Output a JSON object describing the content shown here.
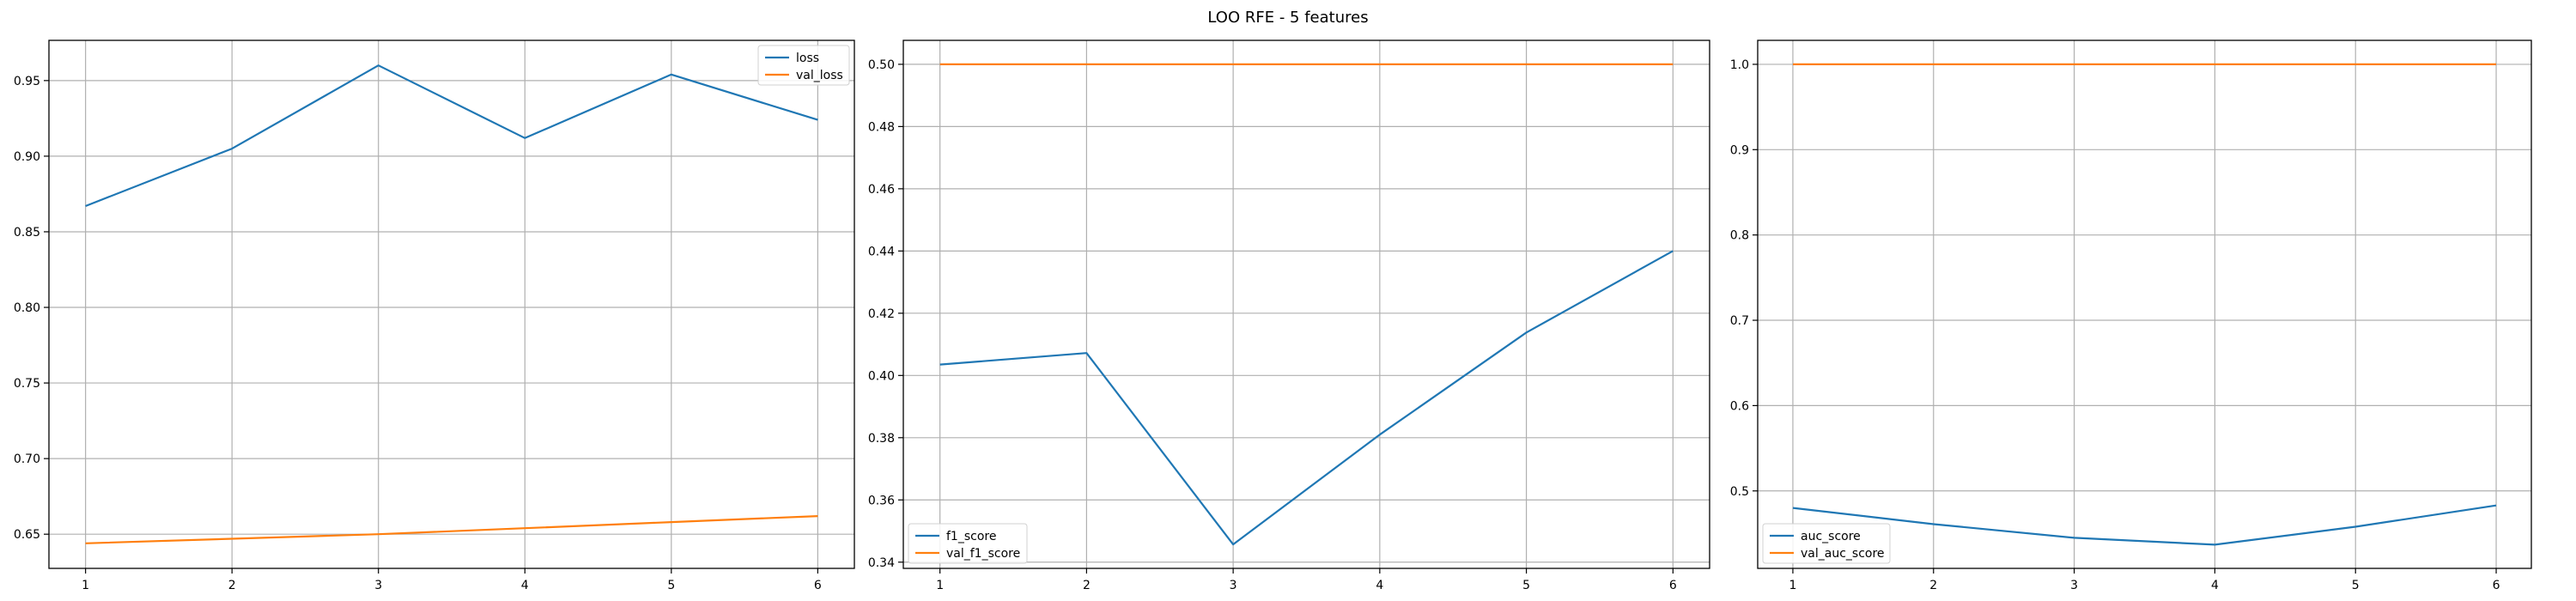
{
  "figure": {
    "title": "LOO RFE - 5 features"
  },
  "colors": {
    "series1": "#1f77b4",
    "series2": "#ff7f0e",
    "grid": "#b0b0b0",
    "axis": "#000000"
  },
  "chart_data": [
    {
      "type": "line",
      "x": [
        1,
        2,
        3,
        4,
        5,
        6
      ],
      "series": [
        {
          "name": "loss",
          "values": [
            0.867,
            0.905,
            0.96,
            0.912,
            0.954,
            0.924
          ]
        },
        {
          "name": "val_loss",
          "values": [
            0.644,
            0.647,
            0.65,
            0.654,
            0.658,
            0.662
          ]
        }
      ],
      "xticks": [
        "1",
        "2",
        "3",
        "4",
        "5",
        "6"
      ],
      "yticks": [
        0.65,
        0.7,
        0.75,
        0.8,
        0.85,
        0.9,
        0.95
      ],
      "ytick_labels": [
        "0.65",
        "0.70",
        "0.75",
        "0.80",
        "0.85",
        "0.90",
        "0.95"
      ],
      "xlim": [
        0.75,
        6.25
      ],
      "ylim": [
        0.6274,
        0.9766
      ],
      "grid": true,
      "legend": "top-right"
    },
    {
      "type": "line",
      "x": [
        1,
        2,
        3,
        4,
        5,
        6
      ],
      "series": [
        {
          "name": "f1_score",
          "values": [
            0.4035,
            0.4072,
            0.3457,
            0.381,
            0.4138,
            0.44
          ]
        },
        {
          "name": "val_f1_score",
          "values": [
            0.5,
            0.5,
            0.5,
            0.5,
            0.5,
            0.5
          ]
        }
      ],
      "xticks": [
        "1",
        "2",
        "3",
        "4",
        "5",
        "6"
      ],
      "yticks": [
        0.34,
        0.36,
        0.38,
        0.4,
        0.42,
        0.44,
        0.46,
        0.48,
        0.5
      ],
      "ytick_labels": [
        "0.34",
        "0.36",
        "0.38",
        "0.40",
        "0.42",
        "0.44",
        "0.46",
        "0.48",
        "0.50"
      ],
      "xlim": [
        0.75,
        6.25
      ],
      "ylim": [
        0.338,
        0.5077
      ],
      "grid": true,
      "legend": "bottom-left"
    },
    {
      "type": "line",
      "x": [
        1,
        2,
        3,
        4,
        5,
        6
      ],
      "series": [
        {
          "name": "auc_score",
          "values": [
            0.48,
            0.461,
            0.445,
            0.437,
            0.458,
            0.483
          ]
        },
        {
          "name": "val_auc_score",
          "values": [
            1.0,
            1.0,
            1.0,
            1.0,
            1.0,
            1.0
          ]
        }
      ],
      "xticks": [
        "1",
        "2",
        "3",
        "4",
        "5",
        "6"
      ],
      "yticks": [
        0.5,
        0.6,
        0.7,
        0.8,
        0.9,
        1.0
      ],
      "ytick_labels": [
        "0.5",
        "0.6",
        "0.7",
        "0.8",
        "0.9",
        "1.0"
      ],
      "xlim": [
        0.75,
        6.25
      ],
      "ylim": [
        0.4092,
        1.0281
      ],
      "grid": true,
      "legend": "bottom-left"
    }
  ]
}
